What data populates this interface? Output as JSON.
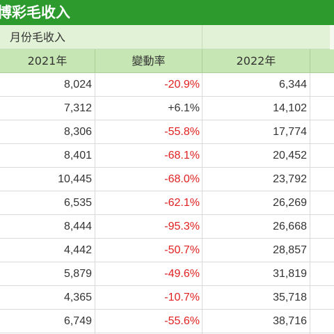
{
  "title": "博彩毛收入",
  "group_header": "月份毛收入",
  "columns": [
    "2021年",
    "變動率",
    "2022年"
  ],
  "rows": [
    {
      "y2021": "8,024",
      "change": "-20.9%",
      "y2022": "6,344"
    },
    {
      "y2021": "7,312",
      "change": "+6.1%",
      "y2022": "14,102"
    },
    {
      "y2021": "8,306",
      "change": "-55.8%",
      "y2022": "17,774"
    },
    {
      "y2021": "8,401",
      "change": "-68.1%",
      "y2022": "20,452"
    },
    {
      "y2021": "10,445",
      "change": "-68.0%",
      "y2022": "23,792"
    },
    {
      "y2021": "6,535",
      "change": "-62.1%",
      "y2022": "26,269"
    },
    {
      "y2021": "8,444",
      "change": "-95.3%",
      "y2022": "26,668"
    },
    {
      "y2021": "4,442",
      "change": "-50.7%",
      "y2022": "28,857"
    },
    {
      "y2021": "5,879",
      "change": "-49.6%",
      "y2022": "31,819"
    },
    {
      "y2021": "4,365",
      "change": "-10.7%",
      "y2022": "35,718"
    },
    {
      "y2021": "6,749",
      "change": "-55.6%",
      "y2022": "38,716"
    }
  ],
  "colors": {
    "title_bg": "#2d9a2e",
    "group_bg": "#e1f2d6",
    "header_bg": "#c6e6b3",
    "negative": "#e02020",
    "text": "#333333",
    "grid": "#d9d9d9"
  }
}
